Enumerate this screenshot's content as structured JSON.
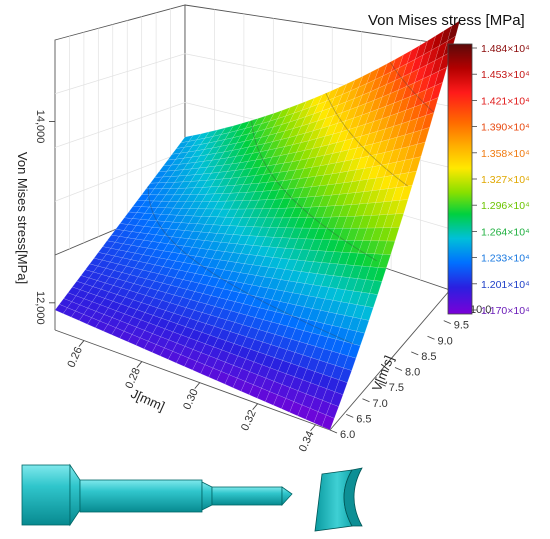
{
  "chart_data": {
    "type": "surface3d",
    "title": "",
    "x_axis": {
      "label": "J[mm]",
      "ticks": [
        "0.26",
        "0.28",
        "0.30",
        "0.32",
        "0.34"
      ],
      "range": [
        0.25,
        0.345
      ]
    },
    "y_axis": {
      "label": "V[m/s]",
      "ticks": [
        "6.0",
        "6.5",
        "7.0",
        "7.5",
        "8.0",
        "8.5",
        "9.0",
        "9.5",
        "10.0"
      ],
      "range": [
        6.0,
        10.0
      ]
    },
    "z_axis": {
      "label": "Von Mises stress[MPa]",
      "ticks": [
        "12,000",
        "14,000"
      ],
      "range": [
        11700,
        14900
      ]
    },
    "corner_values": [
      {
        "J": 0.25,
        "V": 6.0,
        "stress": 11920
      },
      {
        "J": 0.345,
        "V": 6.0,
        "stress": 11700
      },
      {
        "J": 0.25,
        "V": 10.0,
        "stress": 12450
      },
      {
        "J": 0.345,
        "V": 10.0,
        "stress": 14840
      }
    ],
    "colorbar": {
      "title": "Von Mises stress [MPa]",
      "labels": [
        "1.484×10⁴",
        "1.453×10⁴",
        "1.421×10⁴",
        "1.390×10⁴",
        "1.358×10⁴",
        "1.327×10⁴",
        "1.296×10⁴",
        "1.264×10⁴",
        "1.233×10⁴",
        "1.201×10⁴",
        "1.170×10⁴"
      ],
      "label_colors": [
        "#8b0a0a",
        "#c41616",
        "#e01a1a",
        "#e84a10",
        "#f07a10",
        "#e0a800",
        "#6cc400",
        "#20b040",
        "#1878e0",
        "#2040c8",
        "#6a1cb8"
      ],
      "colors": [
        "#5b0a0a",
        "#b30000",
        "#ff1a1a",
        "#ff6a00",
        "#ffb000",
        "#ffe800",
        "#88e000",
        "#00d040",
        "#00c0d8",
        "#0070ff",
        "#2a20e0",
        "#7a00d8"
      ]
    }
  }
}
